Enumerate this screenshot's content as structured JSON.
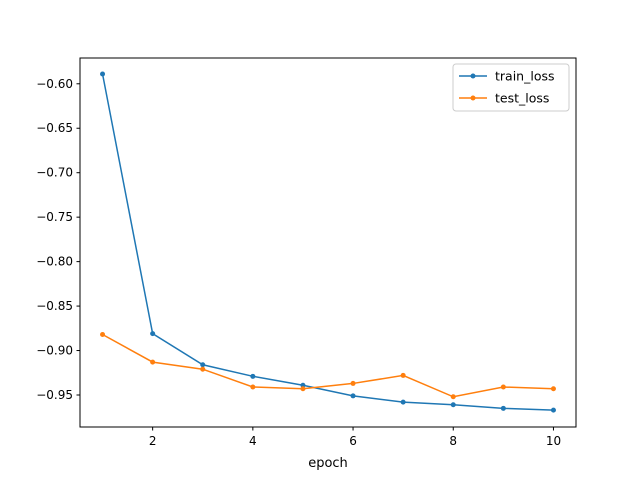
{
  "chart_data": {
    "type": "line",
    "title": "",
    "xlabel": "epoch",
    "ylabel": "",
    "x": [
      1,
      2,
      3,
      4,
      5,
      6,
      7,
      8,
      9,
      10
    ],
    "xlim": [
      0.55,
      10.45
    ],
    "ylim": [
      -0.986,
      -0.571
    ],
    "xticks": [
      2,
      4,
      6,
      8,
      10
    ],
    "xtick_labels": [
      "2",
      "4",
      "6",
      "8",
      "10"
    ],
    "yticks": [
      -0.6,
      -0.65,
      -0.7,
      -0.75,
      -0.8,
      -0.85,
      -0.9,
      -0.95
    ],
    "ytick_labels": [
      "−0.60",
      "−0.65",
      "−0.70",
      "−0.75",
      "−0.80",
      "−0.85",
      "−0.90",
      "−0.95"
    ],
    "grid": false,
    "legend_position": "top-right",
    "series": [
      {
        "name": "train_loss",
        "color": "#1f77b4",
        "values": [
          -0.589,
          -0.881,
          -0.916,
          -0.929,
          -0.939,
          -0.951,
          -0.958,
          -0.961,
          -0.965,
          -0.967
        ]
      },
      {
        "name": "test_loss",
        "color": "#ff7f0e",
        "values": [
          -0.882,
          -0.913,
          -0.921,
          -0.941,
          -0.943,
          -0.937,
          -0.928,
          -0.952,
          -0.941,
          -0.943
        ]
      }
    ]
  }
}
